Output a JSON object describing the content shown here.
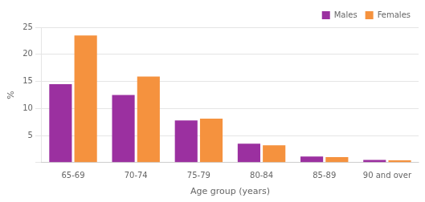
{
  "chart_data": {
    "type": "bar",
    "categories": [
      "65-69",
      "70-74",
      "75-79",
      "80-84",
      "85-89",
      "90 and over"
    ],
    "series": [
      {
        "name": "Males",
        "color": "#9b30a0",
        "values": [
          14.5,
          12.5,
          7.8,
          3.5,
          1.1,
          0.5
        ]
      },
      {
        "name": "Females",
        "color": "#f5923e",
        "values": [
          23.5,
          15.9,
          8.1,
          3.2,
          1.0,
          0.4
        ]
      }
    ],
    "xlabel": "Age group (years)",
    "ylabel": "%",
    "ylim": [
      0,
      25
    ],
    "yticks": [
      {
        "value": 0,
        "label": ""
      },
      5,
      10,
      15,
      20,
      25
    ],
    "grid": true,
    "legend": "upper right"
  }
}
